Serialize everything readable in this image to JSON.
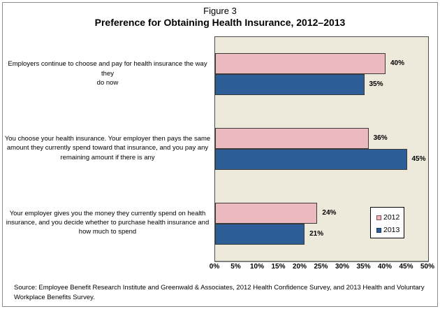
{
  "figure": {
    "label": "Figure 3",
    "title": "Preference for Obtaining Health Insurance, 2012–2013",
    "source": "Source: Employee Benefit Research Institute and Greenwald & Associates, 2012 Health Confidence Survey, and 2013 Health and Voluntary Workplace Benefits Survey."
  },
  "chart_data": {
    "type": "bar",
    "orientation": "horizontal",
    "title": "Preference for Obtaining Health Insurance, 2012–2013",
    "categories": [
      "Employers continue to choose and pay for health insurance the way they\ndo now",
      "You choose your health insurance. Your employer then pays the same\namount they currently spend toward that insurance, and you pay any\nremaining amount if there is any",
      "Your employer gives you the money they currently spend on health\ninsurance, and you decide whether to purchase health insurance and\nhow much to spend"
    ],
    "series": [
      {
        "name": "2012",
        "color": "#ecb9bf",
        "values": [
          40,
          36,
          24
        ]
      },
      {
        "name": "2013",
        "color": "#2e5e98",
        "values": [
          35,
          45,
          21
        ]
      }
    ],
    "value_label_format": "percent",
    "x_ticks": [
      "0%",
      "5%",
      "10%",
      "15%",
      "20%",
      "25%",
      "30%",
      "35%",
      "40%",
      "45%",
      "50%"
    ],
    "xlim": [
      0,
      50
    ],
    "xlabel": "",
    "ylabel": "",
    "grid": false,
    "legend_position": "inside-bottom-right",
    "plot_background": "#edeadc"
  }
}
